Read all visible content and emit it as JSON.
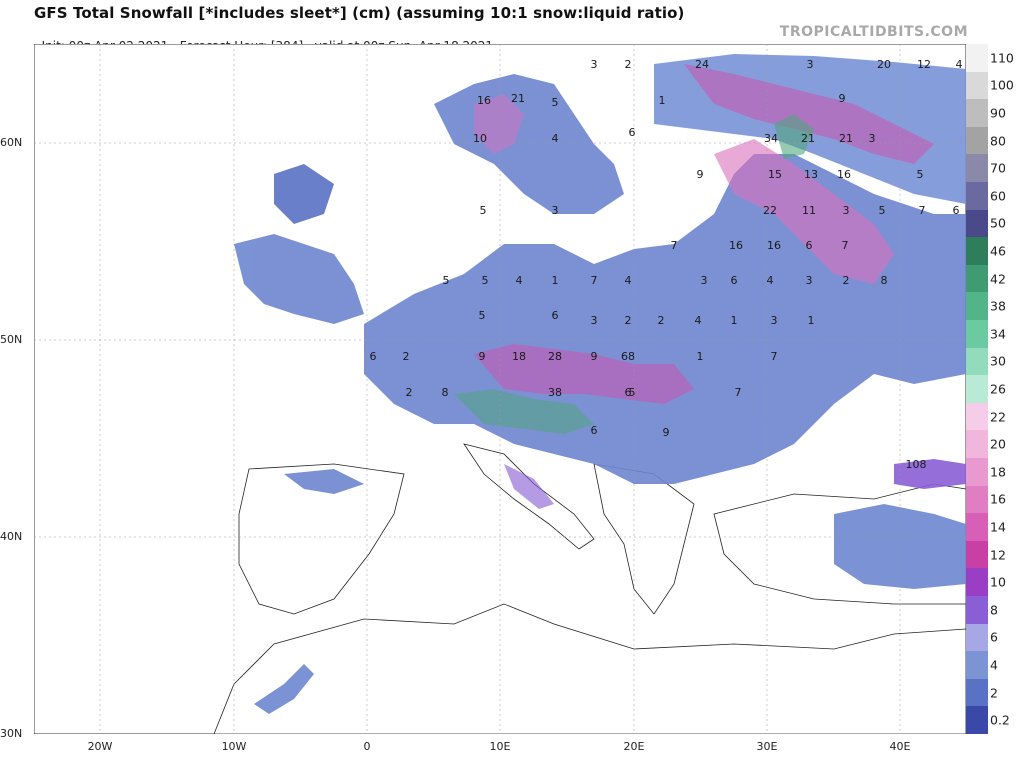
{
  "header": {
    "title": "GFS Total Snowfall [*includes sleet*] (cm) (assuming 10:1 snow:liquid ratio)",
    "init": "Init: 00z Apr 02 2021",
    "forecast_hour": "Forecast Hour: [384]",
    "valid": "valid at 00z Sun, Apr 18 2021",
    "brand": "TROPICALTIDBITS.COM"
  },
  "axes": {
    "lat_labels": [
      "60N",
      "50N",
      "40N",
      "30N"
    ],
    "lon_labels": [
      "20W",
      "10W",
      "0",
      "10E",
      "20E",
      "30E",
      "40E"
    ]
  },
  "legend": {
    "labels": [
      "110",
      "100",
      "90",
      "80",
      "70",
      "60",
      "50",
      "46",
      "42",
      "38",
      "34",
      "30",
      "26",
      "22",
      "20",
      "18",
      "16",
      "14",
      "12",
      "10",
      "8",
      "6",
      "4",
      "2",
      "0.2"
    ],
    "colors": [
      "#f2f2f2",
      "#d9d9d9",
      "#bdbdbd",
      "#a3a3a3",
      "#8a8aa8",
      "#6a6aa0",
      "#4a4a8a",
      "#2e7d5b",
      "#3f9c72",
      "#52b58a",
      "#6ccaa1",
      "#92dcbd",
      "#b8ead6",
      "#f5cde8",
      "#f0b6dc",
      "#e89ad0",
      "#df7ec3",
      "#d760b6",
      "#c83fa5",
      "#9a3fc4",
      "#8a5fd6",
      "#a7a7e6",
      "#7c94d4",
      "#5a72c4",
      "#3a48a8"
    ]
  },
  "map_values": [
    {
      "v": "24"
    },
    {
      "v": "3"
    },
    {
      "v": "20"
    },
    {
      "v": "12"
    },
    {
      "v": "4"
    },
    {
      "v": "3"
    },
    {
      "v": "2"
    },
    {
      "v": "9"
    },
    {
      "v": "16"
    },
    {
      "v": "21"
    },
    {
      "v": "5"
    },
    {
      "v": "10"
    },
    {
      "v": "4"
    },
    {
      "v": "6"
    },
    {
      "v": "1"
    },
    {
      "v": "34"
    },
    {
      "v": "21"
    },
    {
      "v": "21"
    },
    {
      "v": "15"
    },
    {
      "v": "13"
    },
    {
      "v": "16"
    },
    {
      "v": "5"
    },
    {
      "v": "3"
    },
    {
      "v": "9"
    },
    {
      "v": "22"
    },
    {
      "v": "11"
    },
    {
      "v": "3"
    },
    {
      "v": "5"
    },
    {
      "v": "7"
    },
    {
      "v": "6"
    },
    {
      "v": "7"
    },
    {
      "v": "16"
    },
    {
      "v": "16"
    },
    {
      "v": "6"
    },
    {
      "v": "7"
    },
    {
      "v": "3"
    },
    {
      "v": "5"
    },
    {
      "v": "5"
    },
    {
      "v": "5"
    },
    {
      "v": "4"
    },
    {
      "v": "1"
    },
    {
      "v": "7"
    },
    {
      "v": "4"
    },
    {
      "v": "3"
    },
    {
      "v": "6"
    },
    {
      "v": "4"
    },
    {
      "v": "3"
    },
    {
      "v": "2"
    },
    {
      "v": "8"
    },
    {
      "v": "5"
    },
    {
      "v": "6"
    },
    {
      "v": "3"
    },
    {
      "v": "2"
    },
    {
      "v": "2"
    },
    {
      "v": "4"
    },
    {
      "v": "1"
    },
    {
      "v": "3"
    },
    {
      "v": "1"
    },
    {
      "v": "6"
    },
    {
      "v": "2"
    },
    {
      "v": "9"
    },
    {
      "v": "18"
    },
    {
      "v": "28"
    },
    {
      "v": "9"
    },
    {
      "v": "68"
    },
    {
      "v": "1"
    },
    {
      "v": "7"
    },
    {
      "v": "2"
    },
    {
      "v": "8"
    },
    {
      "v": "38"
    },
    {
      "v": "6"
    },
    {
      "v": "9"
    },
    {
      "v": "108"
    },
    {
      "v": "6"
    },
    {
      "v": "5"
    },
    {
      "v": "7"
    }
  ]
}
